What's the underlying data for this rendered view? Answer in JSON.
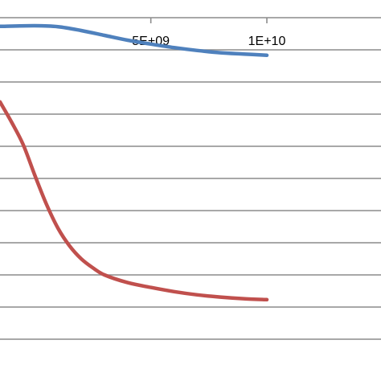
{
  "chart_data": {
    "type": "line",
    "x_tick_labels": [
      "5E+09",
      "1E+10"
    ],
    "x_ticks": [
      5000000000,
      10000000000
    ],
    "xlim": [
      -1500000000,
      10000000000
    ],
    "ylim": [
      0,
      10
    ],
    "grid": true,
    "series": [
      {
        "color": "#4f81bd",
        "x": [
          -1500000000,
          0,
          1000000000,
          2000000000,
          3000000000,
          4000000000,
          5000000000,
          6000000000,
          7000000000,
          8000000000,
          9000000000,
          10000000000
        ],
        "y": [
          9.73,
          9.75,
          9.72,
          9.6,
          9.45,
          9.3,
          9.18,
          9.07,
          8.98,
          8.91,
          8.87,
          8.83
        ]
      },
      {
        "color": "#c0504d",
        "x": [
          -1500000000,
          -1000000000,
          -500000000,
          0,
          500000000,
          1000000000,
          1500000000,
          2000000000,
          2500000000,
          3000000000,
          4000000000,
          5000000000,
          6000000000,
          7000000000,
          8000000000,
          9000000000,
          10000000000
        ],
        "y": [
          7.38,
          6.75,
          6.05,
          5.1,
          4.2,
          3.45,
          2.9,
          2.5,
          2.22,
          2.0,
          1.76,
          1.61,
          1.48,
          1.38,
          1.31,
          1.26,
          1.23
        ]
      }
    ]
  }
}
